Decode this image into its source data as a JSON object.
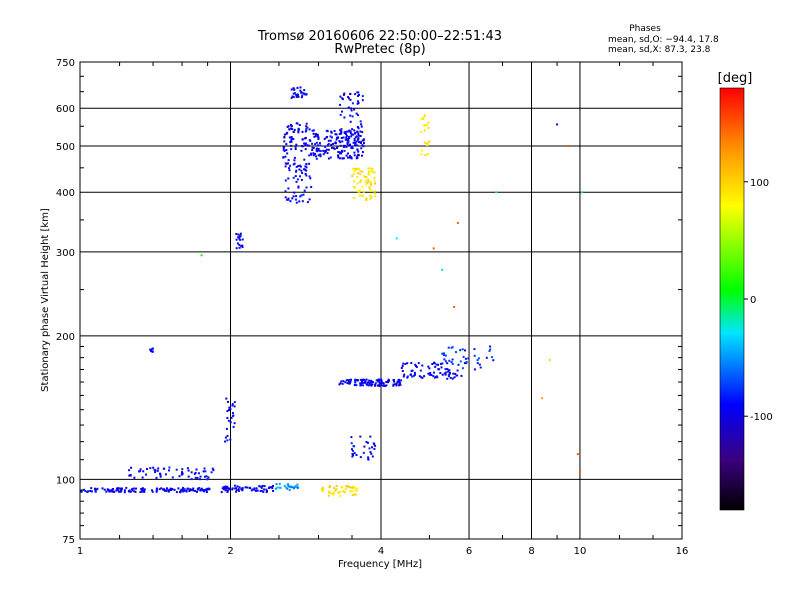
{
  "chart_data": {
    "type": "scatter",
    "title": "Tromsø 20160606 22:50:00–22:51:43",
    "subtitle": "RwPretec (8p)",
    "xlabel": "Frequency [MHz]",
    "ylabel": "Stationary phase Virtual Height [km]",
    "xscale": "log",
    "yscale": "log",
    "xlim": [
      1,
      16
    ],
    "ylim": [
      75,
      750
    ],
    "xticks": [
      1,
      2,
      4,
      6,
      8,
      10,
      16
    ],
    "xtick_labels": [
      "1",
      "2",
      "4",
      "6",
      "8",
      "10",
      "16"
    ],
    "yticks": [
      75,
      100,
      200,
      300,
      400,
      500,
      600,
      750
    ],
    "ytick_labels": [
      "75",
      "100",
      "200",
      "300",
      "400",
      "500",
      "600",
      "750"
    ],
    "grid": true,
    "legend": {
      "heading": "Phases",
      "line1": "mean, sd,O: −94.4, 17.8",
      "line2": "mean, sd,X:  87.3, 23.8",
      "placement": "top-right"
    },
    "colorbar": {
      "label": "[deg]",
      "ticks": [
        -100,
        0,
        100
      ],
      "tick_labels": [
        "-100",
        "0",
        "100"
      ],
      "range": [
        -180,
        180
      ]
    },
    "clusters": [
      {
        "x": [
          1.0,
          1.82
        ],
        "y": [
          94,
          96
        ],
        "phase": -95,
        "n": 150
      },
      {
        "x": [
          1.25,
          1.85
        ],
        "y": [
          100,
          106
        ],
        "phase": -95,
        "n": 60
      },
      {
        "x": [
          1.38,
          1.4
        ],
        "y": [
          185,
          189
        ],
        "phase": -95,
        "n": 8
      },
      {
        "x": [
          1.95,
          2.05
        ],
        "y": [
          120,
          150
        ],
        "phase": -95,
        "n": 25
      },
      {
        "x": [
          2.05,
          2.12
        ],
        "y": [
          305,
          330
        ],
        "phase": -95,
        "n": 18
      },
      {
        "x": [
          1.92,
          2.45
        ],
        "y": [
          94,
          97
        ],
        "phase": -95,
        "n": 60
      },
      {
        "x": [
          2.45,
          2.75
        ],
        "y": [
          95,
          98
        ],
        "phase": -50,
        "n": 25
      },
      {
        "x": [
          2.55,
          2.9
        ],
        "y": [
          380,
          560
        ],
        "phase": -95,
        "n": 140
      },
      {
        "x": [
          2.65,
          2.85
        ],
        "y": [
          630,
          665
        ],
        "phase": -95,
        "n": 30
      },
      {
        "x": [
          2.9,
          3.7
        ],
        "y": [
          470,
          540
        ],
        "phase": -95,
        "n": 180
      },
      {
        "x": [
          3.3,
          3.7
        ],
        "y": [
          500,
          650
        ],
        "phase": -95,
        "n": 60
      },
      {
        "x": [
          3.5,
          3.9
        ],
        "y": [
          385,
          450
        ],
        "phase": 90,
        "n": 70
      },
      {
        "x": [
          3.0,
          3.6
        ],
        "y": [
          92,
          97
        ],
        "phase": 95,
        "n": 45
      },
      {
        "x": [
          3.3,
          4.4
        ],
        "y": [
          157,
          162
        ],
        "phase": -95,
        "n": 110
      },
      {
        "x": [
          4.4,
          5.8
        ],
        "y": [
          162,
          176
        ],
        "phase": -95,
        "n": 80
      },
      {
        "x": [
          5.3,
          6.8
        ],
        "y": [
          170,
          190
        ],
        "phase": -80,
        "n": 40
      },
      {
        "x": [
          4.8,
          5.0
        ],
        "y": [
          475,
          590
        ],
        "phase": 90,
        "n": 20
      },
      {
        "x": [
          3.45,
          3.9
        ],
        "y": [
          110,
          123
        ],
        "phase": -95,
        "n": 30
      }
    ],
    "isolated_points": [
      {
        "x": 1.75,
        "y": 295,
        "phase": 10
      },
      {
        "x": 4.3,
        "y": 320,
        "phase": -30
      },
      {
        "x": 5.1,
        "y": 305,
        "phase": 150
      },
      {
        "x": 5.3,
        "y": 275,
        "phase": -30
      },
      {
        "x": 5.6,
        "y": 230,
        "phase": 150
      },
      {
        "x": 5.7,
        "y": 345,
        "phase": 150
      },
      {
        "x": 9.0,
        "y": 555,
        "phase": -95
      },
      {
        "x": 9.5,
        "y": 500,
        "phase": 150
      },
      {
        "x": 10.1,
        "y": 400,
        "phase": -30
      },
      {
        "x": 8.7,
        "y": 178,
        "phase": 100
      },
      {
        "x": 8.4,
        "y": 148,
        "phase": 120
      },
      {
        "x": 9.9,
        "y": 113,
        "phase": 150
      },
      {
        "x": 10.0,
        "y": 104,
        "phase": 150
      },
      {
        "x": 6.8,
        "y": 400,
        "phase": -30
      }
    ]
  }
}
